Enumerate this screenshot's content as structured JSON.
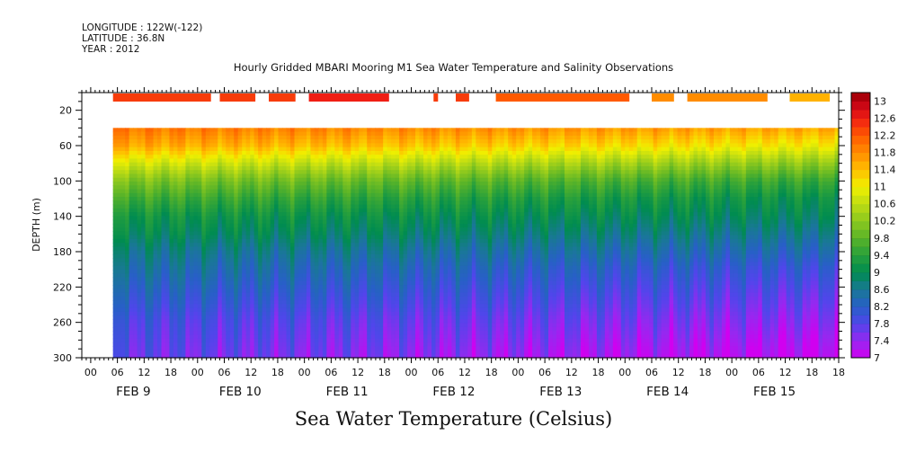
{
  "header": {
    "longitude": "LONGITUDE : 122W(-122)",
    "latitude": "LATITUDE : 36.8N",
    "year": "YEAR : 2012"
  },
  "title": "Hourly Gridded MBARI Mooring M1 Sea Water Temperature and Salinity Observations",
  "colorbar_title": "Sea Water Temperature (Celsius)",
  "chart_data": {
    "type": "heatmap",
    "title": "Hourly Gridded MBARI Mooring M1 Sea Water Temperature and Salinity Observations",
    "xlabel": "",
    "ylabel": "DEPTH (m)",
    "y_ticks": [
      20,
      60,
      100,
      140,
      180,
      220,
      260,
      300
    ],
    "y_range": [
      0,
      300
    ],
    "y_inverted": true,
    "x_range_hours": [
      0,
      168
    ],
    "x_hour_labels": [
      "00",
      "06",
      "12",
      "18",
      "00",
      "06",
      "12",
      "18",
      "00",
      "06",
      "12",
      "18",
      "00",
      "06",
      "12",
      "18",
      "00",
      "06",
      "12",
      "18",
      "00",
      "06",
      "12",
      "18",
      "00",
      "06",
      "12",
      "18",
      "18"
    ],
    "date_labels": [
      "FEB  9",
      "FEB 10",
      "FEB 11",
      "FEB 12",
      "FEB 13",
      "FEB 14",
      "FEB 15"
    ],
    "colorbar": {
      "labels": [
        "13",
        "12.6",
        "12.2",
        "11.8",
        "11.4",
        "11",
        "10.6",
        "10.2",
        "9.8",
        "9.4",
        "9",
        "8.6",
        "8.2",
        "7.8",
        "7.4",
        "7"
      ],
      "min": 7,
      "max": 13.2,
      "step": 0.2
    },
    "surface_segments": [
      {
        "start_hour": 5,
        "end_hour": 27,
        "temp": 12.4
      },
      {
        "start_hour": 29,
        "end_hour": 37,
        "temp": 12.4
      },
      {
        "start_hour": 40,
        "end_hour": 46,
        "temp": 12.4
      },
      {
        "start_hour": 49,
        "end_hour": 67,
        "temp": 12.6
      },
      {
        "start_hour": 77,
        "end_hour": 78,
        "temp": 12.4
      },
      {
        "start_hour": 82,
        "end_hour": 85,
        "temp": 12.4
      },
      {
        "start_hour": 91,
        "end_hour": 121,
        "temp": 12.2
      },
      {
        "start_hour": 126,
        "end_hour": 131,
        "temp": 11.8
      },
      {
        "start_hour": 134,
        "end_hour": 152,
        "temp": 11.8
      },
      {
        "start_hour": 157,
        "end_hour": 166,
        "temp": 11.5
      }
    ],
    "depth_profile": {
      "data_start_hour": 5,
      "top_depth": 40,
      "depths": [
        40,
        60,
        80,
        100,
        120,
        140,
        160,
        180,
        200,
        220,
        240,
        260,
        280,
        300
      ],
      "temps_early": [
        12.0,
        11.6,
        10.8,
        10.1,
        9.6,
        9.2,
        9.0,
        8.7,
        8.5,
        8.3,
        8.1,
        7.9,
        7.8,
        7.7
      ],
      "temps_late": [
        11.6,
        11.0,
        10.2,
        9.5,
        9.1,
        8.9,
        8.6,
        8.3,
        8.0,
        7.8,
        7.6,
        7.4,
        7.2,
        7.0
      ]
    }
  }
}
